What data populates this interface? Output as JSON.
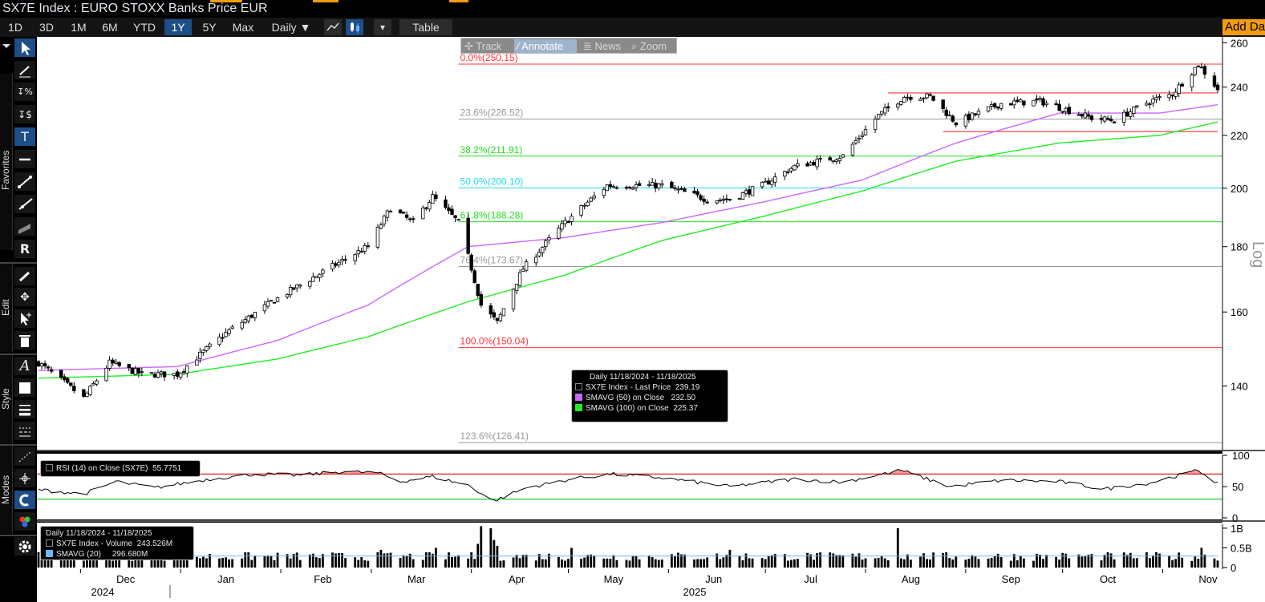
{
  "window": {
    "title": "SX7E Index : EURO STOXX Banks Price EUR"
  },
  "toolbar": {
    "periods": [
      "1D",
      "3D",
      "1M",
      "6M",
      "YTD",
      "1Y",
      "5Y",
      "Max"
    ],
    "active_period": "1Y",
    "frequency": "Daily ▼",
    "table_label": "Table",
    "add_data_label": "Add Data",
    "dropdown_glyph": "▾"
  },
  "nav_tools": {
    "track": "Track",
    "annotate": "Annotate",
    "news": "News",
    "zoom": "Zoom"
  },
  "sidebar": {
    "categories": [
      "Favorites",
      "Edit",
      "Style",
      "Modes"
    ]
  },
  "colors": {
    "price_up": "#ffffff",
    "price_down": "#000000",
    "sma50": "#cc66ff",
    "sma100": "#22ee22",
    "fib_red": "#ff3333",
    "fib_green": "#22dd22",
    "fib_cyan": "#22ddee",
    "fib_gray": "#999999",
    "rsi_line": "#000000",
    "rsi_over": "#ff9999",
    "background": "#ffffff",
    "accent": "#f39c12",
    "active": "#1d4e87"
  },
  "legend": {
    "header": "Daily 11/18/2024 - 11/18/2025",
    "rows": [
      {
        "name": "SX7E Index - Last Price",
        "value": "239.19",
        "color": "#000000"
      },
      {
        "name": "SMAVG (50)  on Close",
        "value": "232.50",
        "color": "#cc66ff"
      },
      {
        "name": "SMAVG (100)  on Close",
        "value": "225.37",
        "color": "#22ee22"
      }
    ]
  },
  "rsi_legend": {
    "label": "RSI (14)  on Close (SX7E)",
    "value": "55.7751"
  },
  "volume_legend": {
    "header": "Daily 11/18/2024 - 11/18/2025",
    "rows": [
      {
        "name": "SX7E Index - Volume",
        "value": "243.526M"
      },
      {
        "name": "SMAVG (20)",
        "value": "296.680M"
      }
    ]
  },
  "fib_levels": [
    {
      "label": "0.0%(250.15)",
      "value": 250.15,
      "color": "#ff3333"
    },
    {
      "label": "23.6%(226.52)",
      "value": 226.52,
      "color": "#999999"
    },
    {
      "label": "38.2%(211.91)",
      "value": 211.91,
      "color": "#22dd22"
    },
    {
      "label": "50.0%(200.10)",
      "value": 200.1,
      "color": "#22ddee"
    },
    {
      "label": "61.8%(188.28)",
      "value": 188.28,
      "color": "#22dd22"
    },
    {
      "label": "76.4%(173.67)",
      "value": 173.67,
      "color": "#999999"
    },
    {
      "label": "100.0%(150.04)",
      "value": 150.04,
      "color": "#ff3333"
    },
    {
      "label": "123.6%(126.41)",
      "value": 126.41,
      "color": "#999999"
    }
  ],
  "chart_data": {
    "type": "candlestick",
    "title": "SX7E Index : EURO STOXX Banks Price EUR",
    "scale": "log",
    "scale_label": "Log",
    "ylim": [
      125,
      262
    ],
    "yticks": [
      140,
      160,
      180,
      200,
      220,
      240,
      260
    ],
    "x_month_labels": [
      "Dec",
      "Jan",
      "Feb",
      "Mar",
      "Apr",
      "May",
      "Jun",
      "Jul",
      "Aug",
      "Sep",
      "Oct",
      "Nov"
    ],
    "x_year_labels": [
      "2024",
      "2025"
    ],
    "x_range": [
      "2024-11-18",
      "2025-11-18"
    ],
    "close_anchors": [
      {
        "date": "2024-11-18",
        "close": 146
      },
      {
        "date": "2024-12-02",
        "close": 137
      },
      {
        "date": "2024-12-10",
        "close": 146
      },
      {
        "date": "2024-12-20",
        "close": 143
      },
      {
        "date": "2024-12-31",
        "close": 143
      },
      {
        "date": "2025-01-15",
        "close": 154
      },
      {
        "date": "2025-01-31",
        "close": 164
      },
      {
        "date": "2025-02-14",
        "close": 172
      },
      {
        "date": "2025-02-28",
        "close": 180
      },
      {
        "date": "2025-03-07",
        "close": 193
      },
      {
        "date": "2025-03-14",
        "close": 188
      },
      {
        "date": "2025-03-20",
        "close": 197
      },
      {
        "date": "2025-03-28",
        "close": 188
      },
      {
        "date": "2025-04-04",
        "close": 162
      },
      {
        "date": "2025-04-09",
        "close": 157
      },
      {
        "date": "2025-04-17",
        "close": 173
      },
      {
        "date": "2025-04-30",
        "close": 188
      },
      {
        "date": "2025-05-13",
        "close": 201
      },
      {
        "date": "2025-05-30",
        "close": 201
      },
      {
        "date": "2025-06-13",
        "close": 196
      },
      {
        "date": "2025-06-20",
        "close": 196
      },
      {
        "date": "2025-06-30",
        "close": 201
      },
      {
        "date": "2025-07-10",
        "close": 208
      },
      {
        "date": "2025-07-25",
        "close": 212
      },
      {
        "date": "2025-08-05",
        "close": 228
      },
      {
        "date": "2025-08-13",
        "close": 236
      },
      {
        "date": "2025-08-21",
        "close": 236
      },
      {
        "date": "2025-08-29",
        "close": 225
      },
      {
        "date": "2025-09-12",
        "close": 233
      },
      {
        "date": "2025-09-24",
        "close": 234
      },
      {
        "date": "2025-10-10",
        "close": 227
      },
      {
        "date": "2025-10-17",
        "close": 226
      },
      {
        "date": "2025-10-28",
        "close": 234
      },
      {
        "date": "2025-11-04",
        "close": 237
      },
      {
        "date": "2025-11-12",
        "close": 250
      },
      {
        "date": "2025-11-18",
        "close": 239.19
      }
    ],
    "sma50_anchors": [
      {
        "date": "2024-11-18",
        "value": 144
      },
      {
        "date": "2024-12-31",
        "value": 145
      },
      {
        "date": "2025-01-31",
        "value": 152
      },
      {
        "date": "2025-02-28",
        "value": 162
      },
      {
        "date": "2025-03-31",
        "value": 180
      },
      {
        "date": "2025-04-30",
        "value": 183
      },
      {
        "date": "2025-05-30",
        "value": 188
      },
      {
        "date": "2025-06-30",
        "value": 195
      },
      {
        "date": "2025-07-31",
        "value": 203
      },
      {
        "date": "2025-08-29",
        "value": 217
      },
      {
        "date": "2025-09-30",
        "value": 229
      },
      {
        "date": "2025-10-31",
        "value": 229
      },
      {
        "date": "2025-11-18",
        "value": 232.5
      }
    ],
    "sma100_anchors": [
      {
        "date": "2024-11-18",
        "value": 142
      },
      {
        "date": "2024-12-31",
        "value": 143
      },
      {
        "date": "2025-01-31",
        "value": 147
      },
      {
        "date": "2025-02-28",
        "value": 153
      },
      {
        "date": "2025-03-31",
        "value": 163
      },
      {
        "date": "2025-04-30",
        "value": 171
      },
      {
        "date": "2025-05-30",
        "value": 182
      },
      {
        "date": "2025-06-30",
        "value": 190
      },
      {
        "date": "2025-07-31",
        "value": 199
      },
      {
        "date": "2025-08-29",
        "value": 210
      },
      {
        "date": "2025-09-30",
        "value": 217
      },
      {
        "date": "2025-10-31",
        "value": 220
      },
      {
        "date": "2025-11-18",
        "value": 225.37
      }
    ],
    "resistance_lines": [
      {
        "value": 237.5,
        "from": "2025-08-08",
        "to": "2025-11-18"
      },
      {
        "value": 221.5,
        "from": "2025-08-25",
        "to": "2025-11-18"
      }
    ],
    "rsi": {
      "name": "RSI (14)",
      "ylim": [
        0,
        100
      ],
      "yticks": [
        0,
        50,
        100
      ],
      "overbought": 70,
      "oversold": 30,
      "last": 55.7751,
      "anchors": [
        {
          "date": "2024-11-18",
          "value": 45
        },
        {
          "date": "2024-12-02",
          "value": 38
        },
        {
          "date": "2024-12-12",
          "value": 58
        },
        {
          "date": "2024-12-24",
          "value": 48
        },
        {
          "date": "2025-01-10",
          "value": 62
        },
        {
          "date": "2025-01-24",
          "value": 70
        },
        {
          "date": "2025-02-07",
          "value": 68
        },
        {
          "date": "2025-02-20",
          "value": 74
        },
        {
          "date": "2025-03-03",
          "value": 72
        },
        {
          "date": "2025-03-10",
          "value": 58
        },
        {
          "date": "2025-03-20",
          "value": 66
        },
        {
          "date": "2025-03-31",
          "value": 52
        },
        {
          "date": "2025-04-08",
          "value": 27
        },
        {
          "date": "2025-04-18",
          "value": 48
        },
        {
          "date": "2025-05-02",
          "value": 62
        },
        {
          "date": "2025-05-14",
          "value": 70
        },
        {
          "date": "2025-05-30",
          "value": 64
        },
        {
          "date": "2025-06-20",
          "value": 50
        },
        {
          "date": "2025-07-10",
          "value": 62
        },
        {
          "date": "2025-07-25",
          "value": 57
        },
        {
          "date": "2025-08-12",
          "value": 76
        },
        {
          "date": "2025-08-27",
          "value": 50
        },
        {
          "date": "2025-09-12",
          "value": 60
        },
        {
          "date": "2025-09-30",
          "value": 58
        },
        {
          "date": "2025-10-14",
          "value": 46
        },
        {
          "date": "2025-10-28",
          "value": 56
        },
        {
          "date": "2025-11-12",
          "value": 76
        },
        {
          "date": "2025-11-18",
          "value": 55.78
        }
      ]
    },
    "volume": {
      "ylim": [
        0,
        1.1
      ],
      "unit": "B",
      "ytick_labels": [
        "0",
        "0.5B",
        "1B"
      ],
      "ytick_values": [
        0,
        0.5,
        1
      ],
      "typical": 0.28,
      "spikes": [
        {
          "date": "2024-12-20",
          "value": 0.55
        },
        {
          "date": "2025-03-04",
          "value": 0.45
        },
        {
          "date": "2025-03-21",
          "value": 0.5
        },
        {
          "date": "2025-04-03",
          "value": 0.6
        },
        {
          "date": "2025-04-04",
          "value": 1.05
        },
        {
          "date": "2025-04-07",
          "value": 1.0
        },
        {
          "date": "2025-04-08",
          "value": 0.7
        },
        {
          "date": "2025-04-09",
          "value": 0.55
        },
        {
          "date": "2025-05-02",
          "value": 0.5
        },
        {
          "date": "2025-06-20",
          "value": 0.45
        },
        {
          "date": "2025-08-11",
          "value": 1.0
        },
        {
          "date": "2025-11-13",
          "value": 0.5
        }
      ],
      "last": 0.243526,
      "sma20_last": 0.29668
    }
  }
}
